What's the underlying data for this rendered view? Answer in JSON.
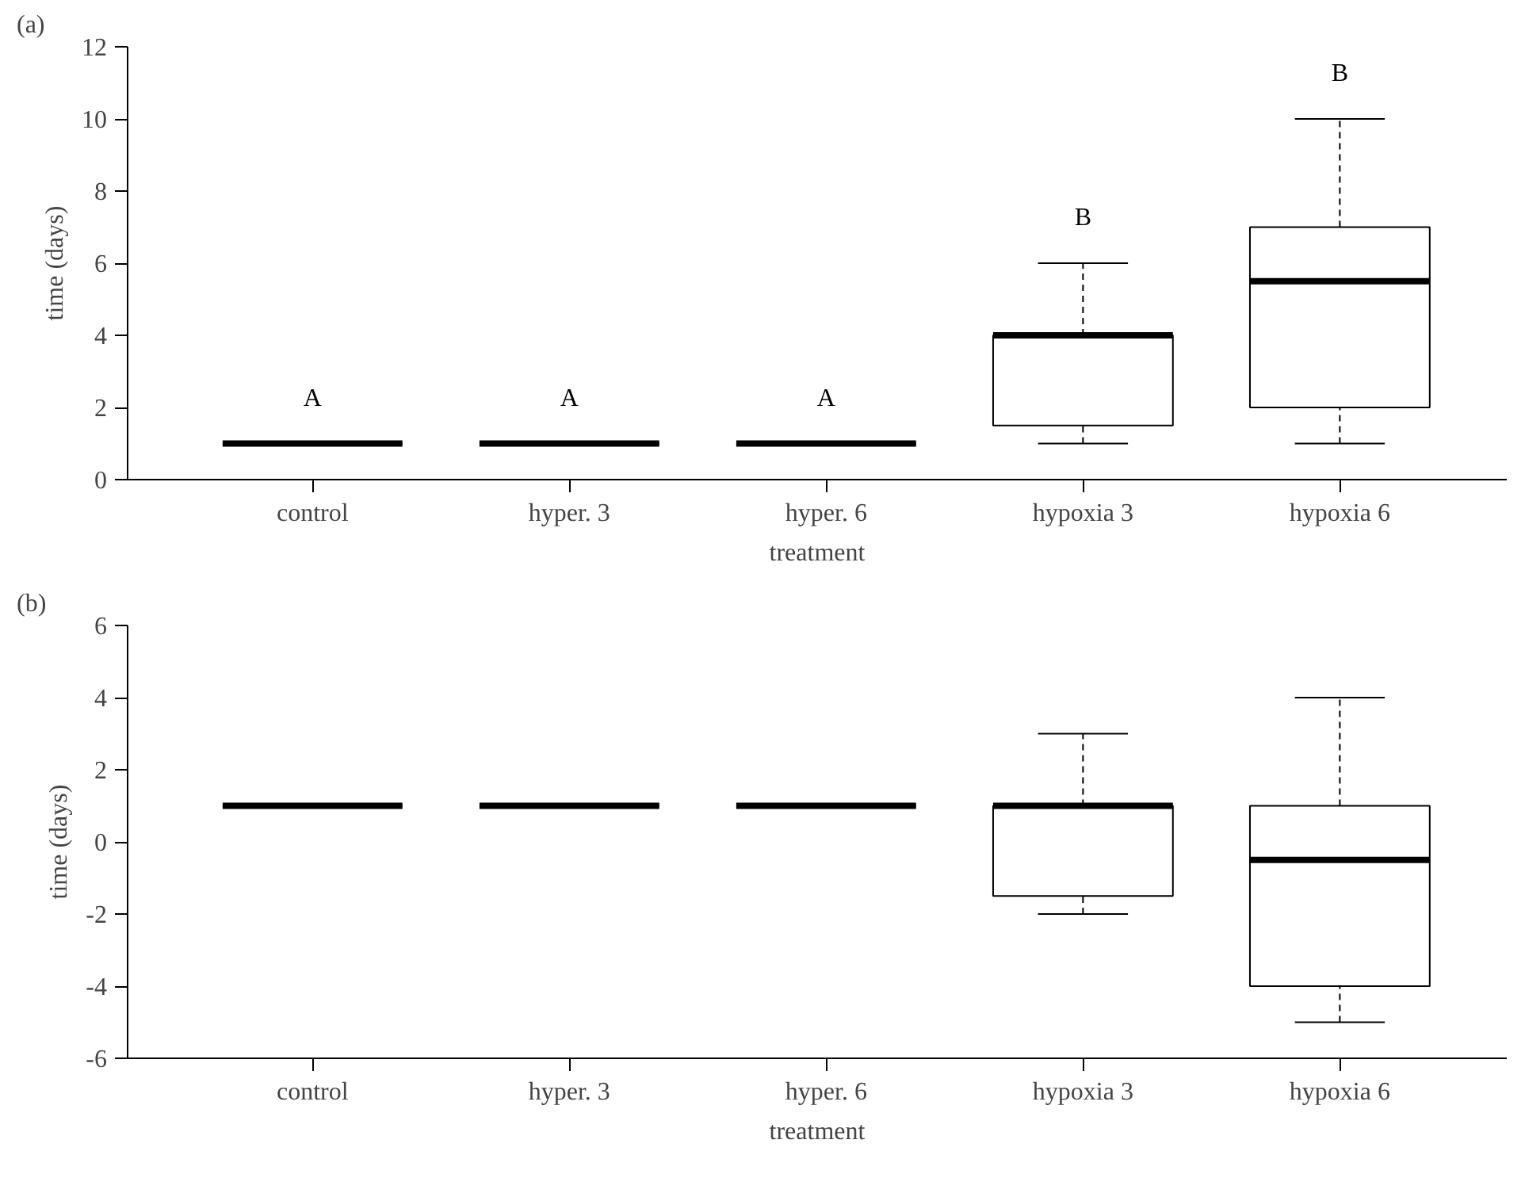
{
  "chart_data": [
    {
      "type": "box",
      "title": "(a)",
      "xlabel": "treatment",
      "ylabel": "time (days)",
      "categories": [
        "control",
        "hyper. 3",
        "hyper. 6",
        "hypoxia 3",
        "hypoxia 6"
      ],
      "color": "#000000",
      "boxes": [
        {
          "low": 1,
          "q1": 1,
          "median": 1,
          "q3": 1,
          "high": 1
        },
        {
          "low": 1,
          "q1": 1,
          "median": 1,
          "q3": 1,
          "high": 1
        },
        {
          "low": 1,
          "q1": 1,
          "median": 1,
          "q3": 1,
          "high": 1
        },
        {
          "low": 1,
          "q1": 1.5,
          "median": 4,
          "q3": 4,
          "high": 6
        },
        {
          "low": 1,
          "q1": 2,
          "median": 5.5,
          "q3": 7,
          "high": 10
        }
      ],
      "ylim": [
        0,
        12
      ],
      "yticks": [
        0,
        2,
        4,
        6,
        8,
        10,
        12
      ],
      "grid": false,
      "annotations": [
        "A",
        "A",
        "A",
        "B",
        "B"
      ]
    },
    {
      "type": "box",
      "title": "(b)",
      "xlabel": "treatment",
      "ylabel": "time (days)",
      "categories": [
        "control",
        "hyper. 3",
        "hyper. 6",
        "hypoxia 3",
        "hypoxia 6"
      ],
      "color": "#000000",
      "boxes": [
        {
          "low": 1,
          "q1": 1,
          "median": 1,
          "q3": 1,
          "high": 1
        },
        {
          "low": 1,
          "q1": 1,
          "median": 1,
          "q3": 1,
          "high": 1
        },
        {
          "low": 1,
          "q1": 1,
          "median": 1,
          "q3": 1,
          "high": 1
        },
        {
          "low": -2,
          "q1": -1.5,
          "median": 1,
          "q3": 1,
          "high": 3
        },
        {
          "low": -5,
          "q1": -4,
          "median": -0.5,
          "q3": 1,
          "high": 4
        }
      ],
      "ylim": [
        -6,
        6
      ],
      "yticks": [
        -6,
        -4,
        -2,
        0,
        2,
        4,
        6
      ],
      "grid": false
    }
  ]
}
